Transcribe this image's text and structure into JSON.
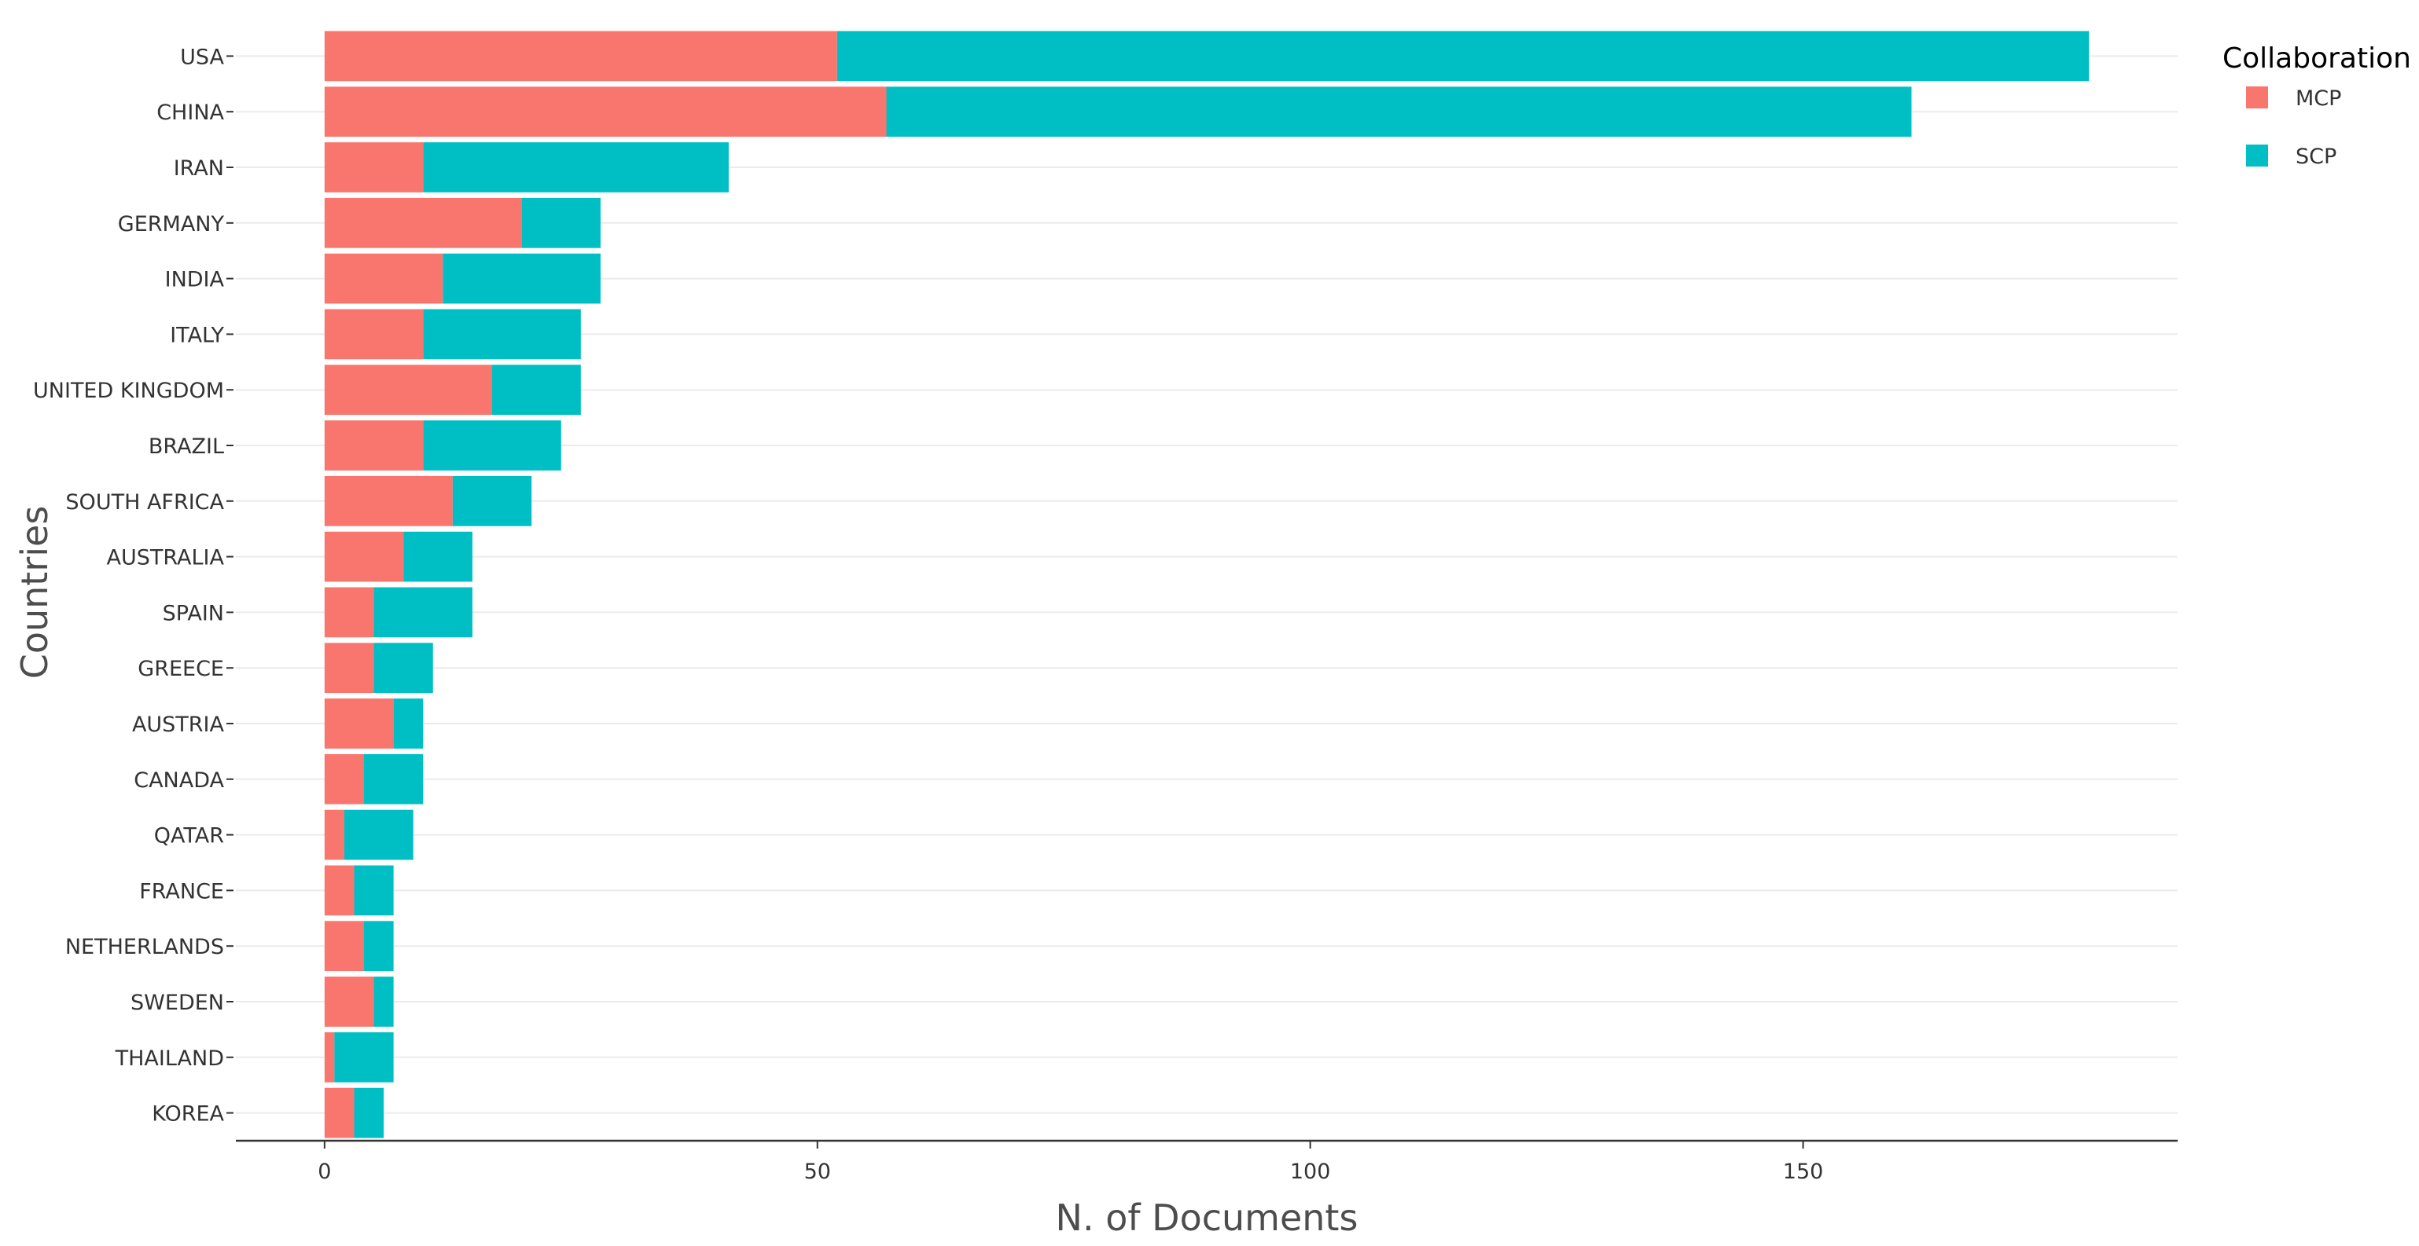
{
  "chart_data": {
    "type": "bar",
    "orientation": "horizontal",
    "stacked": true,
    "categories": [
      "USA",
      "CHINA",
      "IRAN",
      "GERMANY",
      "INDIA",
      "ITALY",
      "UNITED KINGDOM",
      "BRAZIL",
      "SOUTH AFRICA",
      "AUSTRALIA",
      "SPAIN",
      "GREECE",
      "AUSTRIA",
      "CANADA",
      "QATAR",
      "FRANCE",
      "NETHERLANDS",
      "SWEDEN",
      "THAILAND",
      "KOREA"
    ],
    "series": [
      {
        "name": "MCP",
        "color": "#F8766D",
        "values": [
          52,
          57,
          10,
          20,
          12,
          10,
          17,
          10,
          13,
          8,
          5,
          5,
          7,
          4,
          2,
          3,
          4,
          5,
          1,
          3
        ]
      },
      {
        "name": "SCP",
        "color": "#00BFC4",
        "values": [
          127,
          104,
          31,
          8,
          16,
          16,
          9,
          14,
          8,
          7,
          10,
          6,
          3,
          6,
          7,
          4,
          3,
          2,
          6,
          3
        ]
      }
    ],
    "xlabel": "N. of Documents",
    "ylabel": "Countries",
    "xlim": [
      -9,
      188
    ],
    "xticks": [
      0,
      50,
      100,
      150
    ],
    "legend": {
      "title": "Collaboration",
      "position": "top-right"
    },
    "grid": true
  }
}
